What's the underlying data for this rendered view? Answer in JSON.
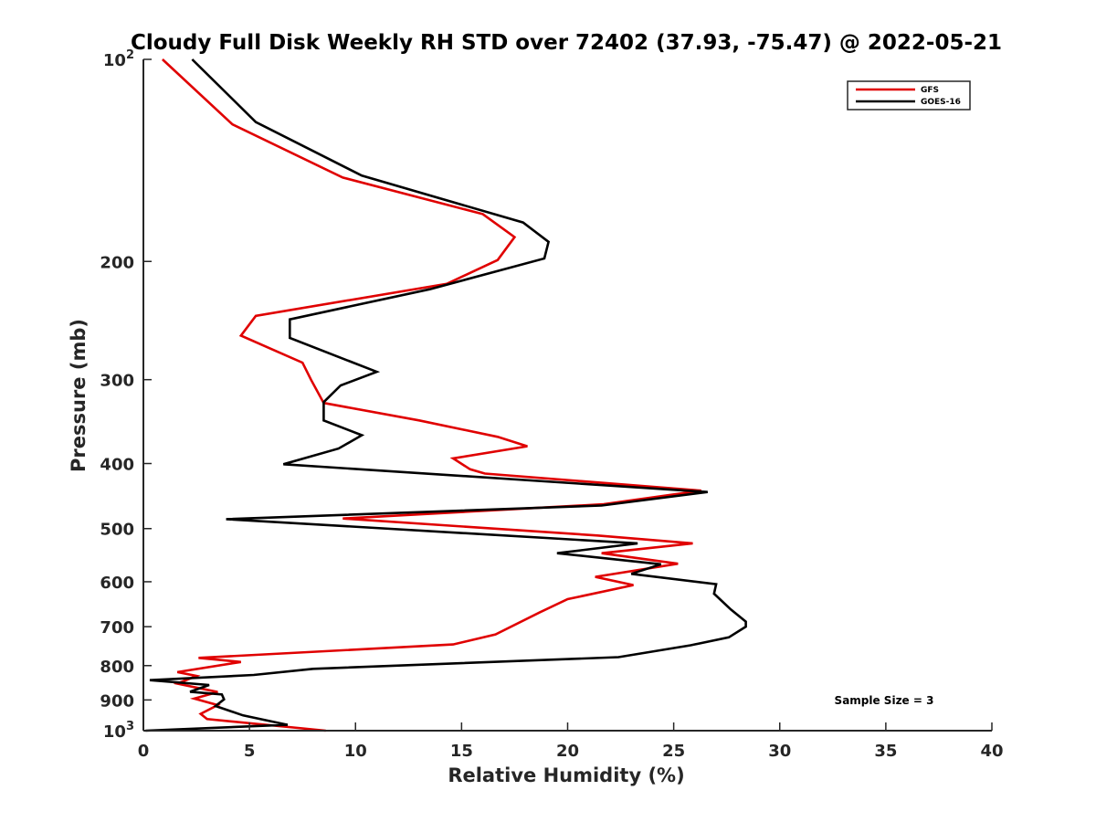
{
  "chart_data": {
    "type": "line",
    "title": "Cloudy Full Disk Weekly RH STD over 72402 (37.93, -75.47) @ 2022-05-21",
    "xlabel": "Relative Humidity (%)",
    "ylabel": "Pressure (mb)",
    "xlim": [
      0,
      40
    ],
    "ylim": [
      100,
      1000
    ],
    "y_scale": "log",
    "y_inverted": true,
    "x_ticks": [
      0,
      5,
      10,
      15,
      20,
      25,
      30,
      35,
      40
    ],
    "x_tick_labels": [
      "0",
      "5",
      "10",
      "15",
      "20",
      "25",
      "30",
      "35",
      "40"
    ],
    "y_ticks": [
      100,
      200,
      300,
      400,
      500,
      600,
      700,
      800,
      900,
      1000
    ],
    "y_tick_labels": [
      {
        "base": "10",
        "exp": "2"
      },
      {
        "base": "200",
        "exp": ""
      },
      {
        "base": "300",
        "exp": ""
      },
      {
        "base": "400",
        "exp": ""
      },
      {
        "base": "500",
        "exp": ""
      },
      {
        "base": "600",
        "exp": ""
      },
      {
        "base": "700",
        "exp": ""
      },
      {
        "base": "800",
        "exp": ""
      },
      {
        "base": "900",
        "exp": ""
      },
      {
        "base": "10",
        "exp": "3"
      }
    ],
    "grid": false,
    "legend_position": "top-right",
    "annotation": "Sample Size = 3",
    "series": [
      {
        "name": "GFS",
        "color": "#e00000",
        "points": [
          [
            0.9,
            100
          ],
          [
            4.2,
            125
          ],
          [
            9.4,
            150
          ],
          [
            16.0,
            170
          ],
          [
            17.5,
            184
          ],
          [
            16.7,
            199
          ],
          [
            14.3,
            216
          ],
          [
            5.3,
            241
          ],
          [
            4.6,
            258
          ],
          [
            7.5,
            283
          ],
          [
            7.9,
            300
          ],
          [
            8.5,
            325
          ],
          [
            13.0,
            345
          ],
          [
            16.7,
            365
          ],
          [
            18.1,
            377
          ],
          [
            14.6,
            393
          ],
          [
            15.4,
            408
          ],
          [
            16.1,
            414
          ],
          [
            26.3,
            439
          ],
          [
            21.7,
            460
          ],
          [
            9.4,
            483
          ],
          [
            21.4,
            512
          ],
          [
            25.9,
            526
          ],
          [
            21.6,
            544
          ],
          [
            25.2,
            564
          ],
          [
            21.3,
            590
          ],
          [
            23.1,
            607
          ],
          [
            20.0,
            637
          ],
          [
            18.7,
            666
          ],
          [
            16.6,
            719
          ],
          [
            14.6,
            744
          ],
          [
            2.6,
            779
          ],
          [
            4.6,
            790
          ],
          [
            1.6,
            818
          ],
          [
            2.5,
            829
          ],
          [
            1.6,
            851
          ],
          [
            3.5,
            876
          ],
          [
            2.4,
            896
          ],
          [
            3.5,
            916
          ],
          [
            2.7,
            944
          ],
          [
            3.0,
            961
          ],
          [
            8.6,
            1000
          ]
        ]
      },
      {
        "name": "GOES-16",
        "color": "#000000",
        "points": [
          [
            2.3,
            100
          ],
          [
            5.3,
            124
          ],
          [
            10.3,
            149
          ],
          [
            17.9,
            175
          ],
          [
            19.1,
            187
          ],
          [
            18.9,
            198
          ],
          [
            13.5,
            220
          ],
          [
            6.9,
            244
          ],
          [
            6.9,
            260
          ],
          [
            11.0,
            292
          ],
          [
            9.3,
            306
          ],
          [
            8.5,
            324
          ],
          [
            8.5,
            345
          ],
          [
            10.3,
            363
          ],
          [
            9.2,
            380
          ],
          [
            6.6,
            401
          ],
          [
            26.6,
            441
          ],
          [
            21.6,
            462
          ],
          [
            3.9,
            484
          ],
          [
            23.3,
            526
          ],
          [
            19.5,
            544
          ],
          [
            24.4,
            565
          ],
          [
            23.0,
            584
          ],
          [
            27.0,
            605
          ],
          [
            26.9,
            625
          ],
          [
            27.7,
            660
          ],
          [
            28.4,
            688
          ],
          [
            28.4,
            700
          ],
          [
            27.6,
            726
          ],
          [
            25.8,
            746
          ],
          [
            22.4,
            777
          ],
          [
            8.0,
            809
          ],
          [
            5.2,
            826
          ],
          [
            0.3,
            841
          ],
          [
            3.1,
            855
          ],
          [
            2.2,
            875
          ],
          [
            3.7,
            883
          ],
          [
            3.8,
            898
          ],
          [
            3.4,
            919
          ],
          [
            4.7,
            949
          ],
          [
            6.8,
            980
          ],
          [
            0.1,
            1000
          ]
        ]
      }
    ]
  }
}
